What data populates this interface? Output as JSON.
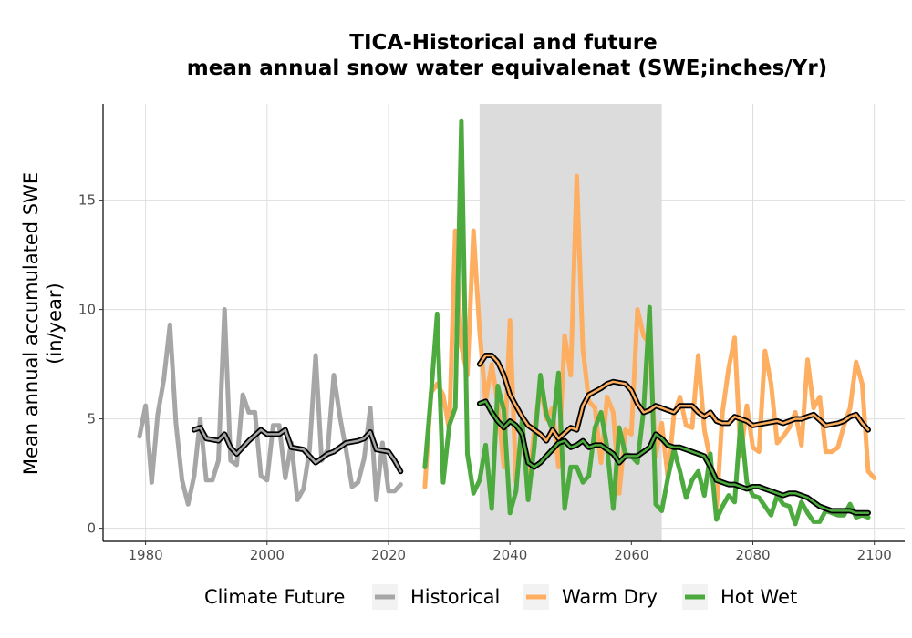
{
  "chart_data": {
    "type": "line",
    "title": "TICA-Historical and future",
    "subtitle": "mean annual snow water equivalenat (SWE;inches/Yr)",
    "ylabel_line1": "Mean annual accumulated SWE",
    "ylabel_line2": "(in/year)",
    "xlabel": "",
    "xlim": [
      1973,
      2105
    ],
    "ylim": [
      -0.6,
      19.4
    ],
    "x_ticks": [
      1980,
      2000,
      2020,
      2040,
      2060,
      2080,
      2100
    ],
    "y_ticks": [
      0,
      5,
      10,
      15
    ],
    "grid": true,
    "shaded_period": [
      2035,
      2065
    ],
    "legend": {
      "title": "Climate Future",
      "position": "bottom",
      "entries": [
        "Historical",
        "Warm Dry",
        "Hot Wet"
      ]
    },
    "colors": {
      "Historical": "#a6a6a6",
      "Warm Dry": "#fdae61",
      "Hot Wet": "#4daa3f",
      "smooth": "#000000",
      "shade": "#dcdcdc"
    },
    "series": [
      {
        "name": "Historical",
        "x_start": 1979,
        "values": [
          4.2,
          5.6,
          2.1,
          5.2,
          6.8,
          9.3,
          4.8,
          2.2,
          1.1,
          2.4,
          5.0,
          2.2,
          2.2,
          3.1,
          10.0,
          3.1,
          2.9,
          6.1,
          5.3,
          5.3,
          2.4,
          2.2,
          4.7,
          4.7,
          2.3,
          3.9,
          1.3,
          1.8,
          3.6,
          7.9,
          3.1,
          3.6,
          7.0,
          5.1,
          3.6,
          1.9,
          2.1,
          3.2,
          5.5,
          1.3,
          3.9,
          1.7,
          1.7,
          2.0
        ]
      },
      {
        "name": "Warm Dry",
        "x_start": 2026,
        "values": [
          1.9,
          6.2,
          6.6,
          6.1,
          4.5,
          13.6,
          8.3,
          7.0,
          13.6,
          9.0,
          5.8,
          7.5,
          5.7,
          2.8,
          9.5,
          2.1,
          4.5,
          1.7,
          4.5,
          6.5,
          5.0,
          5.5,
          2.8,
          8.8,
          7.0,
          16.1,
          8.2,
          5.8,
          5.5,
          3.0,
          6.0,
          5.3,
          1.6,
          4.5,
          4.3,
          10.0,
          8.8,
          8.4,
          3.3,
          4.8,
          2.3,
          5.2,
          6.0,
          4.7,
          4.6,
          7.9,
          4.5,
          3.1,
          0.8,
          5.3,
          7.3,
          8.7,
          3.3,
          5.6,
          3.7,
          3.5,
          8.1,
          6.6,
          3.9,
          4.2,
          4.6,
          5.3,
          3.8,
          7.7,
          5.5,
          6.0,
          3.5,
          3.5,
          3.7,
          4.7,
          5.5,
          7.6,
          6.6,
          2.6,
          2.3
        ]
      },
      {
        "name": "Hot Wet",
        "x_start": 2026,
        "values": [
          2.8,
          6.1,
          9.8,
          2.1,
          4.7,
          5.5,
          18.6,
          3.4,
          1.6,
          2.2,
          3.8,
          0.9,
          6.5,
          5.4,
          0.7,
          1.7,
          5.0,
          1.3,
          3.7,
          7.0,
          5.2,
          4.5,
          7.1,
          0.9,
          2.8,
          2.8,
          2.1,
          2.4,
          4.6,
          5.3,
          3.7,
          0.9,
          4.6,
          3.4,
          3.3,
          3.0,
          5.4,
          10.1,
          1.1,
          0.8,
          2.3,
          3.6,
          2.6,
          1.4,
          2.2,
          2.6,
          1.5,
          3.4,
          0.4,
          1.0,
          1.5,
          1.2,
          4.9,
          2.1,
          1.5,
          1.4,
          1.0,
          0.6,
          1.5,
          1.1,
          1.0,
          0.2,
          1.2,
          0.7,
          0.3,
          0.3,
          0.8,
          0.7,
          0.6,
          0.6,
          1.1,
          0.5,
          0.6,
          0.5
        ]
      }
    ],
    "smoothed": [
      {
        "name": "Historical",
        "points": [
          [
            1988,
            4.5
          ],
          [
            1989,
            4.6
          ],
          [
            1990,
            4.1
          ],
          [
            1992,
            4.0
          ],
          [
            1993,
            4.3
          ],
          [
            1994,
            3.7
          ],
          [
            1995,
            3.4
          ],
          [
            1997,
            4.0
          ],
          [
            1999,
            4.5
          ],
          [
            2000,
            4.3
          ],
          [
            2002,
            4.3
          ],
          [
            2003,
            4.5
          ],
          [
            2004,
            3.7
          ],
          [
            2006,
            3.6
          ],
          [
            2008,
            3.0
          ],
          [
            2010,
            3.4
          ],
          [
            2011,
            3.5
          ],
          [
            2013,
            3.9
          ],
          [
            2015,
            4.0
          ],
          [
            2016,
            4.1
          ],
          [
            2017,
            4.4
          ],
          [
            2018,
            3.6
          ],
          [
            2020,
            3.5
          ],
          [
            2021,
            3.1
          ],
          [
            2022,
            2.6
          ]
        ]
      },
      {
        "name": "Warm Dry",
        "points": [
          [
            2035,
            7.5
          ],
          [
            2036,
            7.9
          ],
          [
            2037,
            7.9
          ],
          [
            2038,
            7.6
          ],
          [
            2039,
            7.0
          ],
          [
            2040,
            6.1
          ],
          [
            2041,
            5.6
          ],
          [
            2042,
            5.1
          ],
          [
            2043,
            4.7
          ],
          [
            2045,
            4.3
          ],
          [
            2046,
            4.0
          ],
          [
            2047,
            4.5
          ],
          [
            2048,
            4.1
          ],
          [
            2050,
            4.6
          ],
          [
            2051,
            4.5
          ],
          [
            2052,
            5.6
          ],
          [
            2053,
            6.1
          ],
          [
            2055,
            6.4
          ],
          [
            2056,
            6.6
          ],
          [
            2057,
            6.7
          ],
          [
            2059,
            6.6
          ],
          [
            2060,
            6.3
          ],
          [
            2061,
            5.7
          ],
          [
            2062,
            5.3
          ],
          [
            2063,
            5.4
          ],
          [
            2064,
            5.6
          ],
          [
            2066,
            5.4
          ],
          [
            2067,
            5.3
          ],
          [
            2068,
            5.6
          ],
          [
            2070,
            5.6
          ],
          [
            2071,
            5.3
          ],
          [
            2072,
            5.1
          ],
          [
            2073,
            5.3
          ],
          [
            2074,
            4.9
          ],
          [
            2075,
            4.8
          ],
          [
            2076,
            4.8
          ],
          [
            2077,
            5.1
          ],
          [
            2078,
            5.0
          ],
          [
            2079,
            4.9
          ],
          [
            2080,
            4.7
          ],
          [
            2082,
            4.8
          ],
          [
            2084,
            4.9
          ],
          [
            2085,
            4.8
          ],
          [
            2087,
            5.0
          ],
          [
            2088,
            5.0
          ],
          [
            2090,
            5.2
          ],
          [
            2092,
            4.7
          ],
          [
            2094,
            4.8
          ],
          [
            2095,
            4.9
          ],
          [
            2096,
            5.1
          ],
          [
            2097,
            5.2
          ],
          [
            2098,
            4.8
          ],
          [
            2099,
            4.5
          ]
        ]
      },
      {
        "name": "Hot Wet",
        "points": [
          [
            2035,
            5.7
          ],
          [
            2036,
            5.8
          ],
          [
            2037,
            5.3
          ],
          [
            2038,
            4.9
          ],
          [
            2039,
            4.6
          ],
          [
            2040,
            4.9
          ],
          [
            2041,
            4.7
          ],
          [
            2042,
            4.3
          ],
          [
            2043,
            3.0
          ],
          [
            2044,
            2.8
          ],
          [
            2045,
            3.0
          ],
          [
            2046,
            3.3
          ],
          [
            2047,
            3.6
          ],
          [
            2048,
            3.9
          ],
          [
            2049,
            4.0
          ],
          [
            2050,
            3.7
          ],
          [
            2051,
            3.8
          ],
          [
            2052,
            4.0
          ],
          [
            2053,
            3.7
          ],
          [
            2054,
            3.8
          ],
          [
            2055,
            3.8
          ],
          [
            2056,
            3.6
          ],
          [
            2057,
            3.4
          ],
          [
            2058,
            3.0
          ],
          [
            2059,
            3.3
          ],
          [
            2060,
            3.3
          ],
          [
            2061,
            3.3
          ],
          [
            2062,
            3.5
          ],
          [
            2063,
            3.7
          ],
          [
            2064,
            4.3
          ],
          [
            2065,
            4.1
          ],
          [
            2066,
            3.8
          ],
          [
            2067,
            3.7
          ],
          [
            2068,
            3.7
          ],
          [
            2069,
            3.6
          ],
          [
            2070,
            3.5
          ],
          [
            2071,
            3.4
          ],
          [
            2072,
            3.3
          ],
          [
            2073,
            2.8
          ],
          [
            2074,
            2.2
          ],
          [
            2075,
            2.1
          ],
          [
            2076,
            2.0
          ],
          [
            2077,
            2.0
          ],
          [
            2078,
            1.9
          ],
          [
            2079,
            1.8
          ],
          [
            2080,
            1.9
          ],
          [
            2081,
            1.9
          ],
          [
            2082,
            1.8
          ],
          [
            2083,
            1.7
          ],
          [
            2084,
            1.6
          ],
          [
            2085,
            1.5
          ],
          [
            2086,
            1.6
          ],
          [
            2087,
            1.6
          ],
          [
            2088,
            1.5
          ],
          [
            2089,
            1.4
          ],
          [
            2090,
            1.2
          ],
          [
            2091,
            1.0
          ],
          [
            2092,
            0.9
          ],
          [
            2093,
            0.8
          ],
          [
            2094,
            0.8
          ],
          [
            2095,
            0.8
          ],
          [
            2096,
            0.8
          ],
          [
            2097,
            0.7
          ],
          [
            2098,
            0.7
          ],
          [
            2099,
            0.7
          ]
        ]
      }
    ]
  }
}
